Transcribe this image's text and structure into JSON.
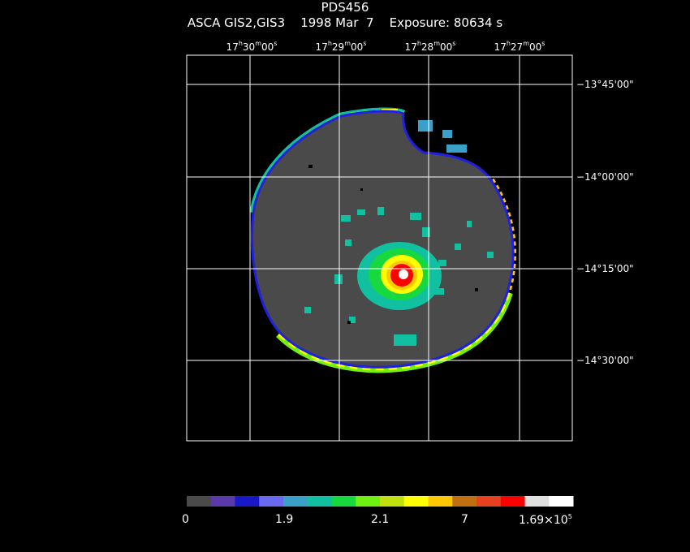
{
  "header": {
    "title": "PDS456",
    "subtitle": "ASCA GIS2,GIS3    1998 Mar  7    Exposure: 80634 s"
  },
  "ra_labels": [
    {
      "h": "17",
      "m": "30",
      "s": "00"
    },
    {
      "h": "17",
      "m": "29",
      "s": "00"
    },
    {
      "h": "17",
      "m": "28",
      "s": "00"
    },
    {
      "h": "17",
      "m": "27",
      "s": "00"
    }
  ],
  "dec_labels": [
    "−13°45'00\"",
    "−14°00'00\"",
    "−14°15'00\"",
    "−14°30'00\""
  ],
  "colorbar": {
    "colors": [
      "#4a4a4a",
      "#5a3aa8",
      "#1818c8",
      "#6a6af0",
      "#3aa0c8",
      "#10c0a0",
      "#18d840",
      "#70f010",
      "#c0e010",
      "#ffff00",
      "#ffc800",
      "#c07010",
      "#e84020",
      "#ff0000",
      "#e0e0e0",
      "#ffffff"
    ],
    "labels": [
      "0",
      "1.9",
      "2.1",
      "7",
      "1.69×10"
    ],
    "exponent": "5"
  },
  "palette": {
    "frame": "#ffffff",
    "disk": "#4a4a4a",
    "rim": "#2020e0"
  }
}
